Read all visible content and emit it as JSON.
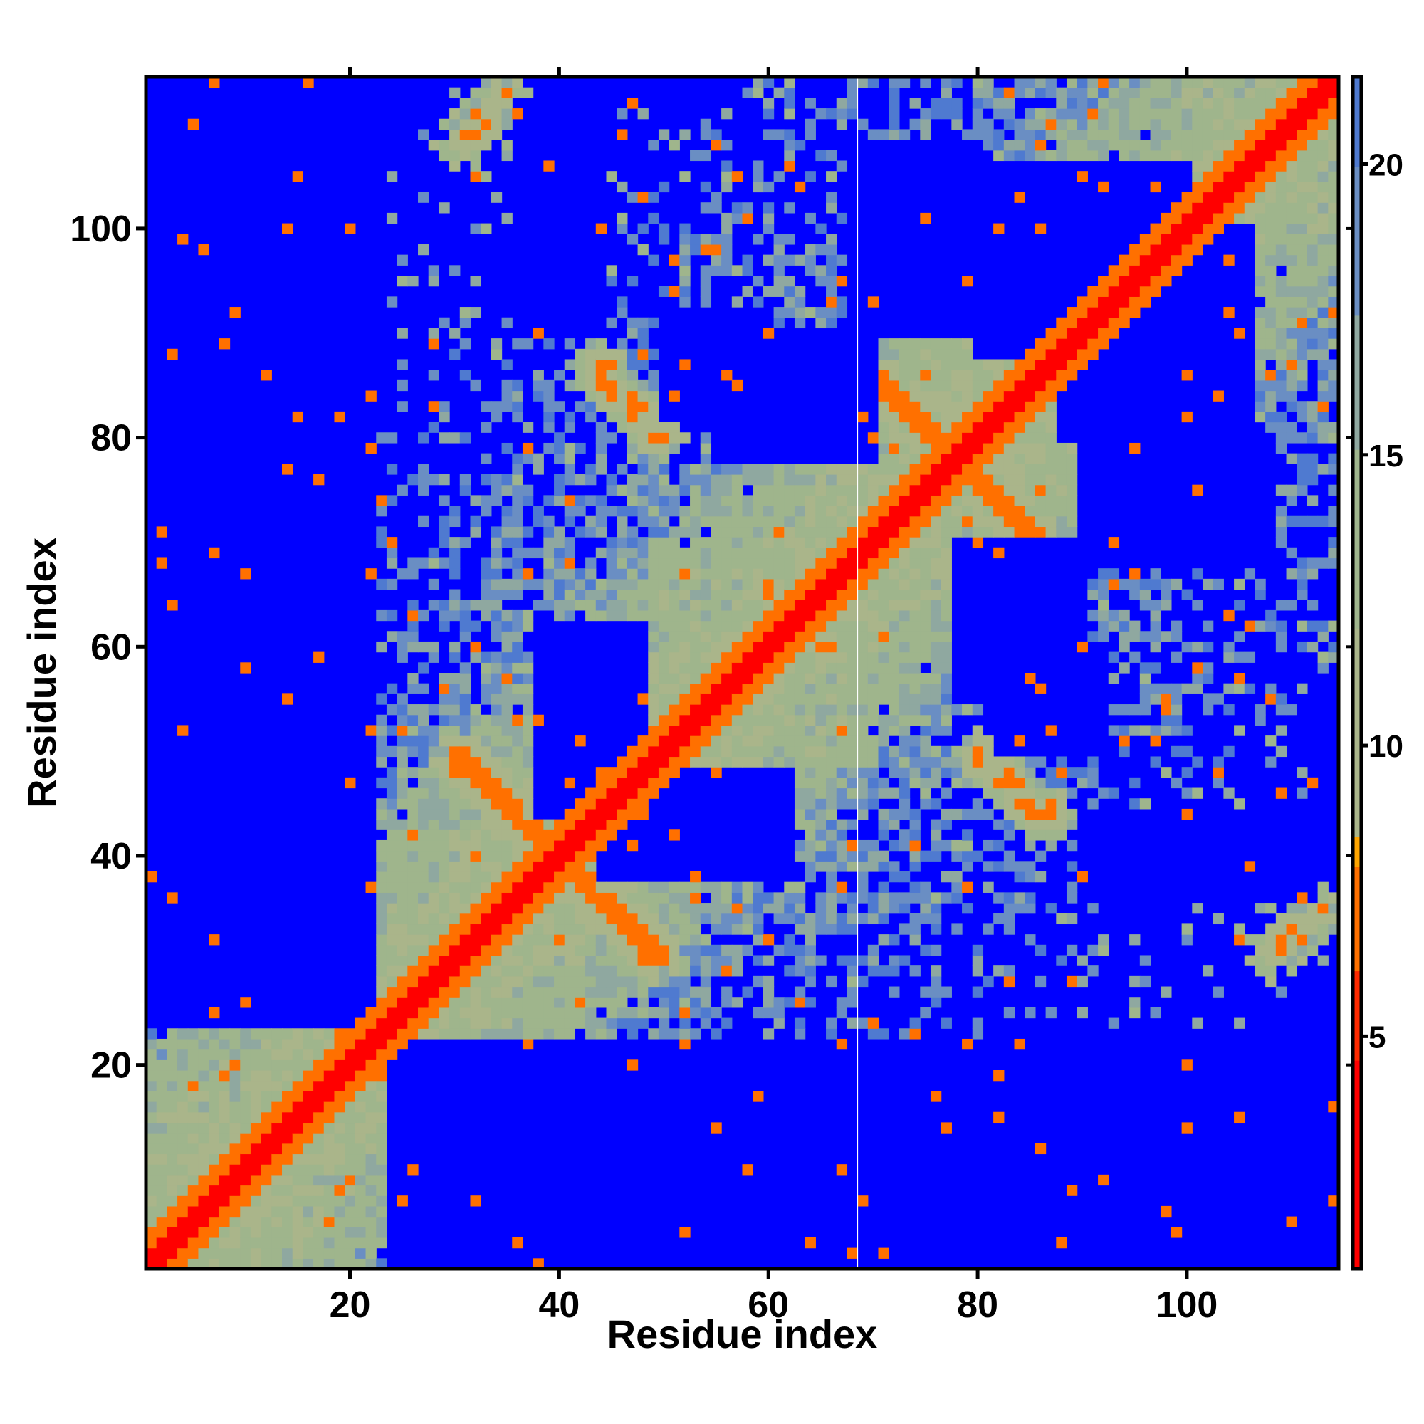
{
  "chart_data": {
    "type": "heatmap",
    "title": "",
    "xlabel": "Residue index",
    "ylabel": "Residue index",
    "xlim": [
      1,
      114
    ],
    "ylim": [
      1,
      114
    ],
    "n_residues": 114,
    "x_ticks": [
      20,
      40,
      60,
      80,
      100
    ],
    "y_ticks": [
      20,
      40,
      60,
      80,
      100
    ],
    "x_tick_labels": [
      "20",
      "40",
      "60",
      "80",
      "100"
    ],
    "y_tick_labels": [
      "20",
      "40",
      "60",
      "80",
      "100"
    ],
    "colorbar": {
      "range": [
        1,
        21.5
      ],
      "ticks": [
        5,
        10,
        15,
        20
      ],
      "tick_labels": [
        "5",
        "10",
        "15",
        "20"
      ],
      "placement": "right",
      "stops": [
        {
          "value": 1,
          "color": "#ff0000"
        },
        {
          "value": 4.5,
          "color": "#ff2a00"
        },
        {
          "value": 6,
          "color": "#ff7000"
        },
        {
          "value": 8,
          "color": "#ffa500"
        },
        {
          "value": 8.5,
          "color": "#aab58a"
        },
        {
          "value": 12,
          "color": "#9fb58c"
        },
        {
          "value": 15,
          "color": "#8fa8a0"
        },
        {
          "value": 17.5,
          "color": "#6a8ec3"
        },
        {
          "value": 20,
          "color": "#4f7ad0"
        },
        {
          "value": 21.5,
          "color": "#0000ff"
        }
      ]
    },
    "background_color": "#0000ff",
    "diagonal_color": "#ff0000",
    "contact_color": "#ffa500",
    "sheet_pairs": [
      {
        "from": [
          42,
          38
        ],
        "to": [
          49,
          30
        ]
      },
      {
        "from": [
          38,
          42
        ],
        "to": [
          30,
          49
        ]
      },
      {
        "from": [
          36,
          44
        ],
        "to": [
          30,
          50
        ]
      },
      {
        "from": [
          44,
          36
        ],
        "to": [
          50,
          30
        ]
      },
      {
        "from": [
          70,
          86
        ],
        "to": [
          77,
          79
        ]
      },
      {
        "from": [
          86,
          70
        ],
        "to": [
          79,
          77
        ]
      },
      {
        "from": [
          44,
          87
        ],
        "to": [
          50,
          80
        ]
      },
      {
        "from": [
          87,
          44
        ],
        "to": [
          80,
          50
        ]
      },
      {
        "from": [
          80,
          50
        ],
        "to": [
          87,
          43
        ]
      },
      {
        "from": [
          50,
          80
        ],
        "to": [
          43,
          87
        ]
      },
      {
        "from": [
          30,
          108
        ],
        "to": [
          35,
          113
        ]
      },
      {
        "from": [
          108,
          30
        ],
        "to": [
          113,
          35
        ]
      },
      {
        "from": [
          64,
          65
        ],
        "to": [
          70,
          63
        ]
      }
    ],
    "blue_void_regions": [
      {
        "x": [
          1,
          22
        ],
        "y": [
          24,
          114
        ]
      },
      {
        "x": [
          24,
          114
        ],
        "y": [
          1,
          22
        ]
      },
      {
        "x": [
          36,
          44
        ],
        "y": [
          90,
          110
        ]
      },
      {
        "x": [
          90,
          110
        ],
        "y": [
          36,
          44
        ]
      },
      {
        "x": [
          44,
          62
        ],
        "y": [
          38,
          48
        ]
      },
      {
        "x": [
          38,
          48
        ],
        "y": [
          44,
          62
        ]
      },
      {
        "x": [
          78,
          90
        ],
        "y": [
          55,
          70
        ]
      },
      {
        "x": [
          55,
          70
        ],
        "y": [
          78,
          90
        ]
      },
      {
        "x": [
          92,
          112
        ],
        "y": [
          36,
          44
        ]
      },
      {
        "x": [
          36,
          44
        ],
        "y": [
          92,
          112
        ]
      },
      {
        "x": [
          88,
          106
        ],
        "y": [
          80,
          100
        ]
      },
      {
        "x": [
          80,
          100
        ],
        "y": [
          88,
          106
        ]
      },
      {
        "x": [
          50,
          60
        ],
        "y": [
          82,
          92
        ]
      },
      {
        "x": [
          82,
          92
        ],
        "y": [
          50,
          60
        ]
      },
      {
        "x": [
          68,
          80
        ],
        "y": [
          90,
          108
        ]
      },
      {
        "x": [
          90,
          108
        ],
        "y": [
          68,
          80
        ]
      }
    ],
    "grid": false
  }
}
